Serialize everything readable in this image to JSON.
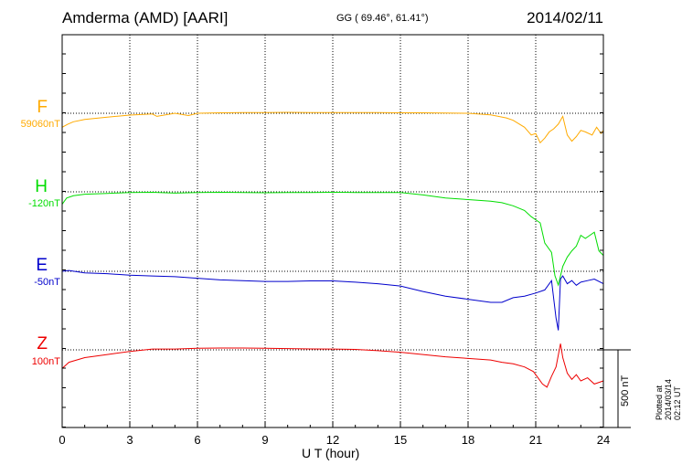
{
  "header": {
    "station": "Amderma (AMD)  [AARI]",
    "coords": "GG ( 69.46°,  61.41°)",
    "date": "2014/02/11"
  },
  "side_note": "Plotted at 2014/03/14 02:12 UT",
  "scale_bar_label": "500 nT",
  "colors": {
    "F": "#ffaa00",
    "H": "#00dd00",
    "E": "#0000cc",
    "Z": "#ee0000"
  },
  "chart_data": {
    "type": "line",
    "xlabel": "U T (hour)",
    "xlim": [
      0,
      24
    ],
    "xticks": [
      0,
      3,
      6,
      9,
      12,
      15,
      18,
      21,
      24
    ],
    "scale_bar_nT": 500,
    "series": [
      {
        "name": "F",
        "baseline_label": "59060nT",
        "color": "#ffaa00",
        "x": [
          0,
          0.25,
          0.5,
          1,
          2,
          3,
          4,
          4.2,
          5,
          5.6,
          6,
          7,
          8,
          9,
          10,
          11,
          12,
          13,
          14,
          15,
          16,
          17,
          18,
          19,
          19.7,
          20,
          20.5,
          20.8,
          21,
          21.2,
          21.4,
          21.6,
          21.8,
          22,
          22.2,
          22.4,
          22.6,
          22.8,
          23,
          23.2,
          23.5,
          23.7,
          23.9,
          24
        ],
        "y": [
          -90,
          -70,
          -55,
          -40,
          -25,
          -12,
          -5,
          -20,
          0,
          -15,
          0,
          3,
          5,
          5,
          6,
          5,
          5,
          5,
          4,
          3,
          3,
          2,
          0,
          -10,
          -30,
          -45,
          -90,
          -140,
          -130,
          -190,
          -160,
          -120,
          -100,
          -70,
          -20,
          -140,
          -180,
          -150,
          -110,
          -120,
          -140,
          -90,
          -130,
          -110
        ]
      },
      {
        "name": "H",
        "baseline_label": "-120nT",
        "color": "#00dd00",
        "x": [
          0,
          0.2,
          0.5,
          1,
          2,
          3,
          4,
          5,
          6,
          7,
          8,
          9,
          10,
          11,
          12,
          13,
          14,
          15,
          16,
          17,
          18,
          19,
          19.5,
          20,
          20.5,
          20.8,
          21,
          21.2,
          21.4,
          21.7,
          21.85,
          22,
          22.2,
          22.4,
          22.6,
          22.8,
          23,
          23.2,
          23.4,
          23.6,
          23.8,
          24
        ],
        "y": [
          -80,
          -40,
          -25,
          -15,
          -10,
          -5,
          -3,
          -8,
          -5,
          -3,
          -5,
          -6,
          -5,
          -5,
          -3,
          -4,
          -5,
          -5,
          -20,
          -40,
          -50,
          -60,
          -70,
          -90,
          -120,
          -160,
          -180,
          -200,
          -330,
          -390,
          -540,
          -600,
          -480,
          -420,
          -380,
          -350,
          -280,
          -300,
          -280,
          -260,
          -380,
          -410
        ]
      },
      {
        "name": "E",
        "baseline_label": "-50nT",
        "color": "#0000cc",
        "x": [
          0,
          0.3,
          1,
          2,
          3,
          4,
          5,
          6,
          7,
          8,
          9,
          10,
          11,
          12,
          13,
          14,
          15,
          16,
          17,
          18,
          19,
          19.5,
          20,
          20.5,
          21,
          21.4,
          21.7,
          21.9,
          22,
          22.1,
          22.2,
          22.4,
          22.6,
          22.8,
          23,
          23.3,
          23.6,
          24
        ],
        "y": [
          0,
          5,
          -10,
          -15,
          -25,
          -30,
          -35,
          -45,
          -55,
          -60,
          -65,
          -65,
          -62,
          -62,
          -70,
          -80,
          -95,
          -130,
          -160,
          -180,
          -200,
          -200,
          -170,
          -160,
          -140,
          -120,
          -60,
          -300,
          -380,
          -50,
          -30,
          -80,
          -60,
          -90,
          -70,
          -60,
          -50,
          -80
        ]
      },
      {
        "name": "Z",
        "baseline_label": "100nT",
        "color": "#ee0000",
        "x": [
          0,
          0.3,
          1,
          2,
          3,
          4,
          5,
          6,
          7,
          8,
          9,
          10,
          11,
          12,
          13,
          14,
          15,
          16,
          17,
          18,
          19,
          19.5,
          20,
          20.5,
          20.9,
          21.1,
          21.3,
          21.5,
          21.7,
          21.9,
          22.1,
          22.2,
          22.4,
          22.6,
          22.8,
          23,
          23.3,
          23.6,
          24
        ],
        "y": [
          -120,
          -80,
          -50,
          -30,
          -10,
          5,
          5,
          10,
          12,
          12,
          10,
          8,
          6,
          5,
          3,
          -5,
          -15,
          -30,
          -45,
          -55,
          -65,
          -80,
          -90,
          -110,
          -140,
          -180,
          -220,
          -240,
          -170,
          -110,
          40,
          -50,
          -150,
          -190,
          -160,
          -200,
          -180,
          -220,
          -200
        ]
      }
    ]
  }
}
